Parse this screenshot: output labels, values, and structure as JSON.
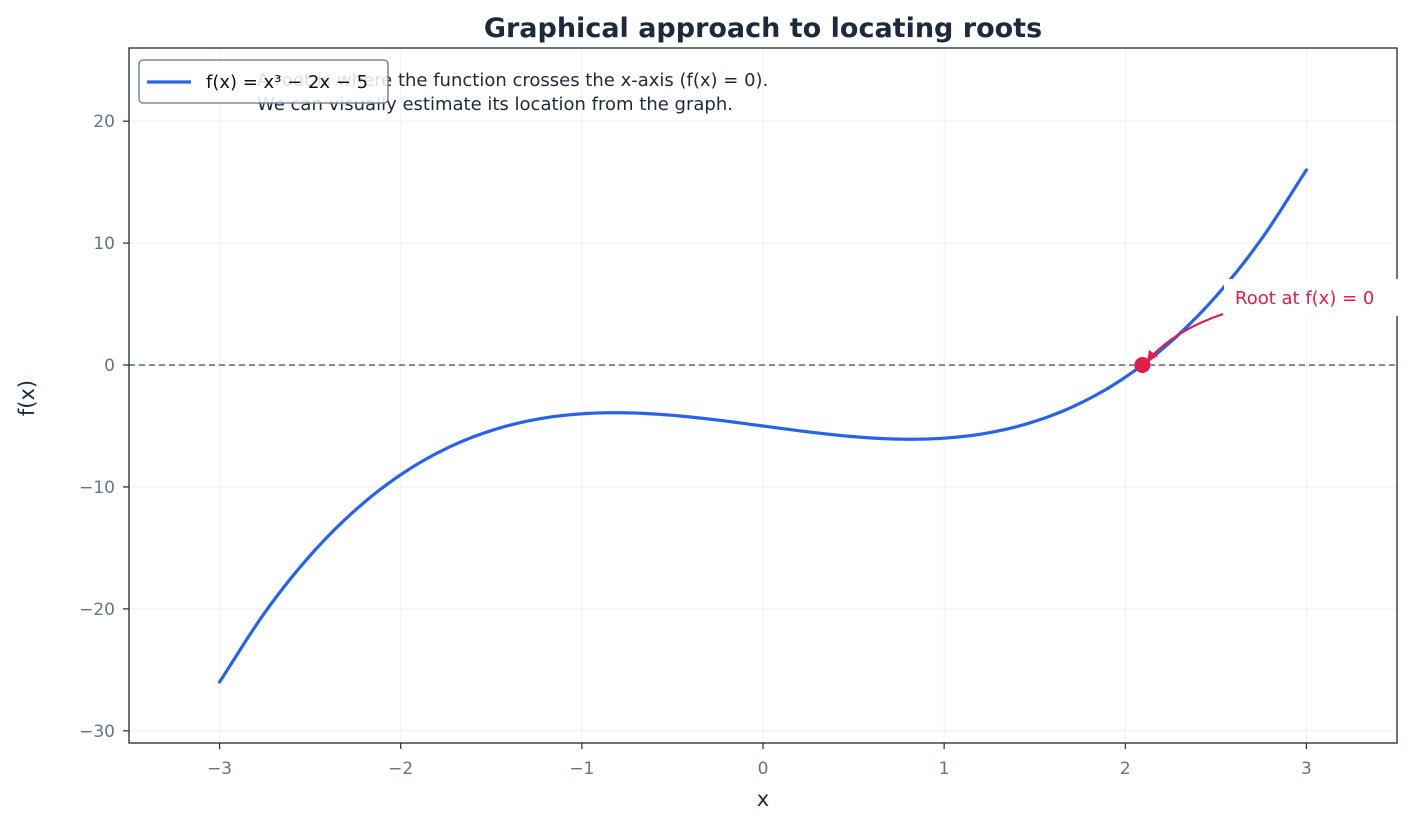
{
  "chart_data": {
    "type": "line",
    "title": "Graphical approach to locating roots",
    "xlabel": "x",
    "ylabel": "f(x)",
    "xlim": [
      -3.5,
      3.5
    ],
    "ylim": [
      -31,
      26
    ],
    "x_ticks": [
      -3,
      -2,
      -1,
      0,
      1,
      2,
      3
    ],
    "x_tick_labels": [
      "−3",
      "−2",
      "−1",
      "0",
      "1",
      "2",
      "3"
    ],
    "y_ticks": [
      -30,
      -20,
      -10,
      0,
      10,
      20
    ],
    "y_tick_labels": [
      "−30",
      "−20",
      "−10",
      "0",
      "10",
      "20"
    ],
    "grid": true,
    "legend_position": "top-left",
    "series": [
      {
        "name": "f(x) = x³ − 2x − 5",
        "color": "#2563eb",
        "x": [
          -3.0,
          -2.75,
          -2.5,
          -2.25,
          -2.0,
          -1.75,
          -1.5,
          -1.25,
          -1.0,
          -0.75,
          -0.5,
          -0.25,
          0.0,
          0.25,
          0.5,
          0.75,
          1.0,
          1.25,
          1.5,
          1.75,
          2.0,
          2.25,
          2.5,
          2.75,
          3.0
        ],
        "y": [
          -26.0,
          -20.297,
          -15.625,
          -11.891,
          -9.0,
          -6.859,
          -5.375,
          -4.453,
          -4.0,
          -3.922,
          -4.125,
          -4.516,
          -5.0,
          -5.484,
          -5.875,
          -6.078,
          -6.0,
          -5.547,
          -4.625,
          -3.141,
          -1.0,
          1.891,
          5.625,
          10.297,
          16.0
        ]
      }
    ],
    "reference_line": {
      "y": 0,
      "style": "dashed",
      "color": "#64748b"
    },
    "root_point": {
      "x": 2.0946,
      "y": 0,
      "color": "#e11d48"
    },
    "annotation": {
      "text": "Root at f(x) = 0",
      "color": "#e11d48"
    },
    "note_lines": [
      "A root is where the function crosses the x-axis (f(x) = 0).",
      "We can visually estimate its location from the graph."
    ]
  }
}
